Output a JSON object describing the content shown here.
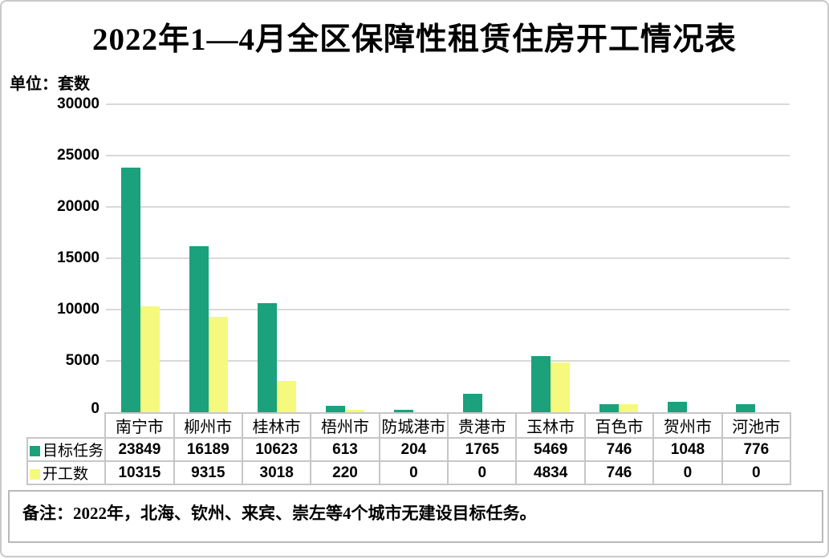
{
  "page": {
    "title": "2022年1—4月全区保障性租赁住房开工情况表",
    "unit_label": "单位：套数"
  },
  "note": {
    "text": "备注：2022年，北海、钦州、来宾、崇左等4个城市无建设目标任务。"
  },
  "chart_data": {
    "type": "bar",
    "title": "2022年1—4月全区保障性租赁住房开工情况表",
    "unit": "套数",
    "categories": [
      "南宁市",
      "柳州市",
      "桂林市",
      "梧州市",
      "防城港市",
      "贵港市",
      "玉林市",
      "百色市",
      "贺州市",
      "河池市"
    ],
    "series": [
      {
        "name": "目标任务",
        "color": "#1ba17c",
        "values": [
          23849,
          16189,
          10623,
          613,
          204,
          1765,
          5469,
          746,
          1048,
          776
        ]
      },
      {
        "name": "开工数",
        "color": "#f5f97e",
        "values": [
          10315,
          9315,
          3018,
          220,
          0,
          0,
          4834,
          746,
          0,
          0
        ]
      }
    ],
    "xlabel": "",
    "ylabel": "套数",
    "ylim": [
      0,
      30000
    ],
    "yticks": [
      0,
      5000,
      10000,
      15000,
      20000,
      25000,
      30000
    ],
    "grid": true,
    "legend_position": "table-left",
    "colors": {
      "gridline": "#d9d9d9",
      "table_border": "#c6c6c6",
      "note_border": "#b9b9b9",
      "frame_border": "#c9c9c9",
      "text": "#000000"
    }
  }
}
